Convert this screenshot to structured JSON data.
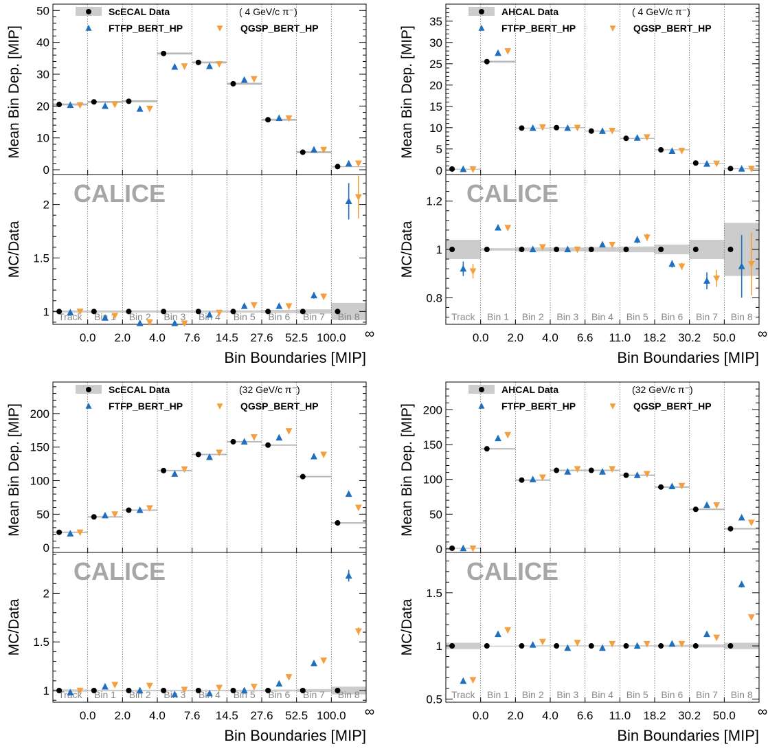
{
  "colors": {
    "data": "#000000",
    "data_band": "#cccccc",
    "ftfp": "#1f6fbf",
    "qgsp": "#f5a040",
    "calice": "#a6a6a6",
    "divider": "#666666"
  },
  "chart_data": [
    {
      "type": "scatter",
      "detector": "ScECAL",
      "energy_label": "( 4 GeV/c π⁻)",
      "legend": {
        "data": "ScECAL Data",
        "ftfp": "FTFP_BERT_HP",
        "qgsp": "QGSP_BERT_HP",
        "placement": "top-left"
      },
      "watermark": "CALICE",
      "bins": [
        "Track",
        "Bin 1",
        "Bin 2",
        "Bin 3",
        "Bin 4",
        "Bin 5",
        "Bin 6",
        "Bin 7",
        "Bin 8"
      ],
      "boundaries": [
        "0.0",
        "2.0",
        "4.0",
        "7.6",
        "14.5",
        "27.6",
        "52.5",
        "100.0",
        "∞"
      ],
      "xlabel": "Bin Boundaries [MIP]",
      "ylabel_top": "Mean Bin Dep. [MIP]",
      "ylabel_bottom": "MC/Data",
      "ylim_top": [
        -1.5,
        52
      ],
      "yticks_top": [
        0,
        10,
        20,
        30,
        40,
        50
      ],
      "ylim_bottom": [
        0.88,
        2.28
      ],
      "yticks_bottom": [
        1,
        1.5,
        2
      ],
      "data": [
        20.5,
        21.3,
        21.5,
        36.5,
        33.7,
        27.0,
        15.7,
        5.5,
        1.0
      ],
      "data_unc": [
        0.3,
        0.3,
        0.3,
        0.3,
        0.3,
        0.3,
        0.3,
        0.3,
        0.08
      ],
      "ftfp": [
        20.3,
        20.0,
        19.1,
        32.3,
        32.5,
        28.2,
        16.2,
        6.3,
        1.9
      ],
      "qgsp": [
        20.3,
        20.5,
        19.2,
        32.5,
        33.2,
        28.5,
        16.2,
        6.3,
        2.0
      ],
      "ratio_ftfp": [
        0.99,
        0.94,
        0.89,
        0.89,
        0.97,
        1.05,
        1.05,
        1.15,
        2.03
      ],
      "ratio_ftfp_err": [
        0,
        0,
        0,
        0,
        0,
        0,
        0,
        0.03,
        0.17
      ],
      "ratio_qgsp": [
        1.0,
        0.96,
        0.9,
        0.89,
        0.99,
        1.06,
        1.05,
        1.14,
        2.07
      ],
      "ratio_qgsp_err": [
        0,
        0,
        0,
        0,
        0,
        0,
        0,
        0.03,
        0.2
      ],
      "ratio_band": [
        0.01,
        0.01,
        0.01,
        0.01,
        0.01,
        0.01,
        0.015,
        0.02,
        0.08
      ]
    },
    {
      "type": "scatter",
      "detector": "AHCAL",
      "energy_label": "( 4 GeV/c π⁻)",
      "legend": {
        "data": "AHCAL Data",
        "ftfp": "FTFP_BERT_HP",
        "qgsp": "QGSP_BERT_HP",
        "placement": "top-left"
      },
      "watermark": "CALICE",
      "bins": [
        "Track",
        "Bin 1",
        "Bin 2",
        "Bin 3",
        "Bin 4",
        "Bin 5",
        "Bin 6",
        "Bin 7",
        "Bin 8"
      ],
      "boundaries": [
        "0.0",
        "2.0",
        "4.0",
        "6.6",
        "11.0",
        "18.2",
        "30.2",
        "50.0",
        "∞"
      ],
      "xlabel": "Bin Boundaries [MIP]",
      "ylabel_top": "Mean Bin Dep. [MIP]",
      "ylabel_bottom": "MC/Data",
      "ylim_top": [
        -1,
        39
      ],
      "yticks_top": [
        0,
        5,
        10,
        15,
        20,
        25,
        30,
        35
      ],
      "ylim_bottom": [
        0.69,
        1.31
      ],
      "yticks_bottom": [
        0.8,
        1,
        1.2
      ],
      "data": [
        0.3,
        25.5,
        9.9,
        10.0,
        9.2,
        7.5,
        4.8,
        1.7,
        0.4
      ],
      "data_unc": [
        0.05,
        0.2,
        0.1,
        0.1,
        0.1,
        0.1,
        0.1,
        0.05,
        0.05
      ],
      "ftfp": [
        0.25,
        27.5,
        9.9,
        9.9,
        9.2,
        7.6,
        4.5,
        1.5,
        0.35
      ],
      "qgsp": [
        0.25,
        28.0,
        10.1,
        10.0,
        9.3,
        7.8,
        4.6,
        1.6,
        0.38
      ],
      "ratio_ftfp": [
        0.92,
        1.09,
        1.0,
        1.0,
        1.02,
        1.04,
        0.94,
        0.87,
        0.93
      ],
      "ratio_ftfp_err": [
        0.03,
        0,
        0,
        0,
        0,
        0.015,
        0.015,
        0.035,
        0.13
      ],
      "ratio_qgsp": [
        0.91,
        1.09,
        1.01,
        1.0,
        1.02,
        1.05,
        0.93,
        0.88,
        0.94
      ],
      "ratio_qgsp_err": [
        0.03,
        0,
        0,
        0,
        0,
        0.015,
        0.015,
        0.035,
        0.13
      ],
      "ratio_band": [
        0.04,
        0.005,
        0.008,
        0.008,
        0.01,
        0.012,
        0.02,
        0.04,
        0.11
      ]
    },
    {
      "type": "scatter",
      "detector": "ScECAL",
      "energy_label": "(32 GeV/c π⁻)",
      "legend": {
        "data": "ScECAL Data",
        "ftfp": "FTFP_BERT_HP",
        "qgsp": "QGSP_BERT_HP",
        "placement": "top-left"
      },
      "watermark": "CALICE",
      "bins": [
        "Track",
        "Bin 1",
        "Bin 2",
        "Bin 3",
        "Bin 4",
        "Bin 5",
        "Bin 6",
        "Bin 7",
        "Bin 8"
      ],
      "boundaries": [
        "0.0",
        "2.0",
        "4.0",
        "7.6",
        "14.5",
        "27.6",
        "52.5",
        "100.0",
        "∞"
      ],
      "xlabel": "Bin Boundaries [MIP]",
      "ylabel_top": "Mean Bin Dep. [MIP]",
      "ylabel_bottom": "MC/Data",
      "ylim_top": [
        -7,
        247
      ],
      "yticks_top": [
        0,
        50,
        100,
        150,
        200
      ],
      "ylim_bottom": [
        0.88,
        2.42
      ],
      "yticks_bottom": [
        1,
        1.5,
        2
      ],
      "data": [
        23,
        46,
        56,
        115,
        139,
        158,
        153,
        106,
        37
      ],
      "data_unc": [
        1,
        1,
        1,
        1,
        1,
        1,
        1,
        1,
        1
      ],
      "ftfp": [
        21,
        48,
        56,
        110,
        135,
        158,
        164,
        136,
        80
      ],
      "qgsp": [
        23,
        50,
        59,
        117,
        142,
        165,
        174,
        139,
        60
      ],
      "ratio_ftfp": [
        0.98,
        1.04,
        1.0,
        0.96,
        0.97,
        1.0,
        1.07,
        1.28,
        2.18
      ],
      "ratio_ftfp_err": [
        0,
        0,
        0,
        0,
        0,
        0,
        0,
        0,
        0.06
      ],
      "ratio_qgsp": [
        1.0,
        1.06,
        1.05,
        1.01,
        1.03,
        1.04,
        1.14,
        1.31,
        1.61
      ],
      "ratio_qgsp_err": [
        0,
        0,
        0,
        0,
        0,
        0,
        0,
        0,
        0.04
      ],
      "ratio_band": [
        0.012,
        0.008,
        0.008,
        0.008,
        0.008,
        0.008,
        0.01,
        0.015,
        0.04
      ]
    },
    {
      "type": "scatter",
      "detector": "AHCAL",
      "energy_label": "(32 GeV/c π⁻)",
      "legend": {
        "data": "AHCAL Data",
        "ftfp": "FTFP_BERT_HP",
        "qgsp": "QGSP_BERT_HP",
        "placement": "top-left"
      },
      "watermark": "CALICE",
      "bins": [
        "Track",
        "Bin 1",
        "Bin 2",
        "Bin 3",
        "Bin 4",
        "Bin 5",
        "Bin 6",
        "Bin 7",
        "Bin 8"
      ],
      "boundaries": [
        "0.0",
        "2.0",
        "4.0",
        "6.6",
        "11.0",
        "18.2",
        "30.2",
        "50.0",
        "∞"
      ],
      "xlabel": "Bin Boundaries [MIP]",
      "ylabel_top": "Mean Bin Dep. [MIP]",
      "ylabel_bottom": "MC/Data",
      "ylim_top": [
        -5,
        240
      ],
      "yticks_top": [
        0,
        50,
        100,
        150,
        200
      ],
      "ylim_bottom": [
        0.47,
        1.88
      ],
      "yticks_bottom": [
        0.5,
        1,
        1.5
      ],
      "data": [
        1,
        144,
        99,
        113,
        113,
        106,
        89,
        57,
        29
      ],
      "data_unc": [
        0.5,
        1,
        1,
        1,
        1,
        1,
        1,
        1,
        1
      ],
      "ftfp": [
        0.8,
        159,
        100,
        111,
        111,
        106,
        90,
        63,
        45
      ],
      "qgsp": [
        0.9,
        164,
        103,
        115,
        115,
        108,
        91,
        63,
        38
      ],
      "ratio_ftfp": [
        0.67,
        1.11,
        1.01,
        0.98,
        0.98,
        1.0,
        1.02,
        1.11,
        1.58
      ],
      "ratio_ftfp_err": [
        0,
        0,
        0,
        0,
        0,
        0,
        0,
        0,
        0.03
      ],
      "ratio_qgsp": [
        0.68,
        1.15,
        1.04,
        1.03,
        1.02,
        1.02,
        1.02,
        1.08,
        1.27
      ],
      "ratio_qgsp_err": [
        0,
        0,
        0,
        0,
        0,
        0,
        0,
        0,
        0
      ],
      "ratio_band": [
        0.03,
        0.003,
        0.005,
        0.005,
        0.005,
        0.006,
        0.01,
        0.015,
        0.03
      ]
    }
  ]
}
